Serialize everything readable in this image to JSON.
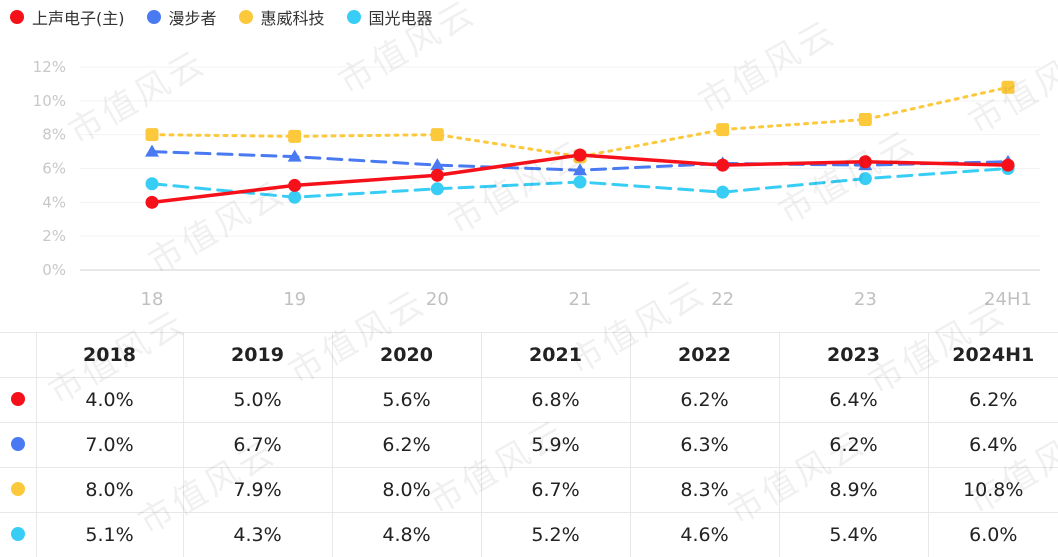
{
  "watermark_text": "市值风云",
  "legend": [
    {
      "label": "上声电子(主)",
      "color": "#f5101a"
    },
    {
      "label": "漫步者",
      "color": "#4a7af2"
    },
    {
      "label": "惠威科技",
      "color": "#fcc83c"
    },
    {
      "label": "国光电器",
      "color": "#38cdf5"
    }
  ],
  "chart_data": {
    "type": "line",
    "categories": [
      "18",
      "19",
      "20",
      "21",
      "22",
      "23",
      "24H1"
    ],
    "y_ticks": [
      "0%",
      "2%",
      "4%",
      "6%",
      "8%",
      "10%",
      "12%"
    ],
    "ylim": [
      0,
      12
    ],
    "series": [
      {
        "name": "上声电子(主)",
        "values": [
          4.0,
          5.0,
          5.6,
          6.8,
          6.2,
          6.4,
          6.2
        ],
        "color": "#f5101a",
        "marker": "circle",
        "line_style": "solid"
      },
      {
        "name": "漫步者",
        "values": [
          7.0,
          6.7,
          6.2,
          5.9,
          6.3,
          6.2,
          6.4
        ],
        "color": "#4a7af2",
        "marker": "triangle",
        "line_style": "dashed"
      },
      {
        "name": "惠威科技",
        "values": [
          8.0,
          7.9,
          8.0,
          6.7,
          8.3,
          8.9,
          10.8
        ],
        "color": "#fcc83c",
        "marker": "square",
        "line_style": "dotted"
      },
      {
        "name": "国光电器",
        "values": [
          5.1,
          4.3,
          4.8,
          5.2,
          4.6,
          5.4,
          6.0
        ],
        "color": "#38cdf5",
        "marker": "circle",
        "line_style": "dashed"
      }
    ]
  },
  "table": {
    "headers": [
      "2018",
      "2019",
      "2020",
      "2021",
      "2022",
      "2023",
      "2024H1"
    ],
    "rows": [
      {
        "color": "#f5101a",
        "cells": [
          "4.0%",
          "5.0%",
          "5.6%",
          "6.8%",
          "6.2%",
          "6.4%",
          "6.2%"
        ]
      },
      {
        "color": "#4a7af2",
        "cells": [
          "7.0%",
          "6.7%",
          "6.2%",
          "5.9%",
          "6.3%",
          "6.2%",
          "6.4%"
        ]
      },
      {
        "color": "#fcc83c",
        "cells": [
          "8.0%",
          "7.9%",
          "8.0%",
          "6.7%",
          "8.3%",
          "8.9%",
          "10.8%"
        ]
      },
      {
        "color": "#38cdf5",
        "cells": [
          "5.1%",
          "4.3%",
          "4.8%",
          "5.2%",
          "4.6%",
          "5.4%",
          "6.0%"
        ]
      }
    ]
  }
}
